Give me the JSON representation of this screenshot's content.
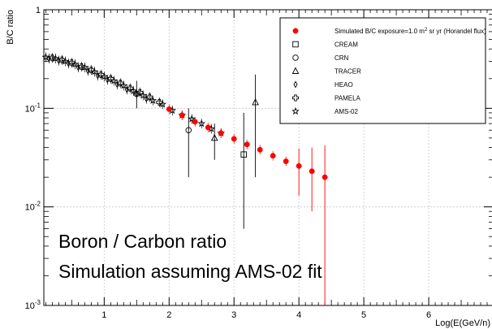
{
  "chart_data": {
    "type": "scatter",
    "xlabel": "Log(E(GeV/n)",
    "ylabel": "B/C ratio",
    "xlim": [
      0.07,
      7.0
    ],
    "ylim": [
      0.001,
      1
    ],
    "yscale": "log",
    "grid": true,
    "legend_position": "top-right",
    "x_ticks": [
      1,
      2,
      3,
      4,
      5,
      6
    ],
    "y_ticks": [
      {
        "value": 1,
        "label": "1"
      },
      {
        "value": 0.1,
        "label": "10^-1",
        "base": "10",
        "exp": "-1"
      },
      {
        "value": 0.01,
        "label": "10^-2",
        "base": "10",
        "exp": "-2"
      },
      {
        "value": 0.001,
        "label": "10^-3",
        "base": "10",
        "exp": "-3"
      }
    ],
    "annotations": [
      "Boron / Carbon ratio",
      "Simulation assuming  AMS-02 fit"
    ],
    "series": [
      {
        "name": "Simulated B/C exposure=1.0 m² sr yr (Horandel flux)",
        "legend_main": "Simulated B/C exposure=1.0 m",
        "legend_sup": "2",
        "legend_tail": " sr yr (Horandel flux)",
        "marker": "filled-circle",
        "color": "#ff0000",
        "points": [
          {
            "x": 2.0,
            "y": 0.098
          },
          {
            "x": 2.2,
            "y": 0.085
          },
          {
            "x": 2.4,
            "y": 0.073
          },
          {
            "x": 2.6,
            "y": 0.064
          },
          {
            "x": 2.8,
            "y": 0.056
          },
          {
            "x": 3.0,
            "y": 0.049
          },
          {
            "x": 3.2,
            "y": 0.043
          },
          {
            "x": 3.4,
            "y": 0.038
          },
          {
            "x": 3.6,
            "y": 0.033
          },
          {
            "x": 3.8,
            "y": 0.029
          },
          {
            "x": 4.0,
            "y": 0.026,
            "lo": 0.013,
            "hi": 0.039
          },
          {
            "x": 4.2,
            "y": 0.023,
            "lo": 0.009,
            "hi": 0.04
          },
          {
            "x": 4.4,
            "y": 0.02,
            "lo": 0.0008,
            "hi": 0.042
          }
        ]
      },
      {
        "name": "CREAM",
        "marker": "open-square",
        "color": "#000000",
        "points": [
          {
            "x": 3.15,
            "y": 0.034,
            "lo": 0.006,
            "hi": 0.09
          }
        ]
      },
      {
        "name": "CRN",
        "marker": "open-circle",
        "color": "#000000",
        "points": [
          {
            "x": 1.5,
            "y": 0.14,
            "lo": 0.1,
            "hi": 0.19
          },
          {
            "x": 2.3,
            "y": 0.06,
            "lo": 0.02,
            "hi": 0.1
          }
        ]
      },
      {
        "name": "TRACER",
        "marker": "open-triangle",
        "color": "#000000",
        "points": [
          {
            "x": 3.33,
            "y": 0.115,
            "lo": 0.02,
            "hi": 0.22
          },
          {
            "x": 2.7,
            "y": 0.05,
            "lo": 0.03,
            "hi": 0.07
          }
        ]
      },
      {
        "name": "HEAO",
        "marker": "open-diamond",
        "color": "#000000",
        "points": [
          {
            "x": 0.15,
            "y": 0.32
          },
          {
            "x": 0.3,
            "y": 0.305
          },
          {
            "x": 0.45,
            "y": 0.285
          },
          {
            "x": 0.6,
            "y": 0.26
          },
          {
            "x": 0.75,
            "y": 0.24
          },
          {
            "x": 0.9,
            "y": 0.215
          },
          {
            "x": 1.05,
            "y": 0.195
          },
          {
            "x": 1.2,
            "y": 0.175
          },
          {
            "x": 1.35,
            "y": 0.155
          },
          {
            "x": 1.5,
            "y": 0.14
          },
          {
            "x": 1.65,
            "y": 0.125
          }
        ]
      },
      {
        "name": "PAMELA",
        "marker": "open-cross",
        "color": "#000000",
        "points": [
          {
            "x": 0.2,
            "y": 0.325
          },
          {
            "x": 0.35,
            "y": 0.31
          },
          {
            "x": 0.5,
            "y": 0.29
          },
          {
            "x": 0.65,
            "y": 0.265
          },
          {
            "x": 0.8,
            "y": 0.245
          },
          {
            "x": 0.95,
            "y": 0.22
          },
          {
            "x": 1.1,
            "y": 0.2
          },
          {
            "x": 1.25,
            "y": 0.18
          },
          {
            "x": 1.4,
            "y": 0.16
          },
          {
            "x": 1.55,
            "y": 0.145
          },
          {
            "x": 1.7,
            "y": 0.13
          },
          {
            "x": 1.85,
            "y": 0.115
          }
        ]
      },
      {
        "name": "AMS-02",
        "marker": "open-star",
        "color": "#000000",
        "points": [
          {
            "x": 0.1,
            "y": 0.33
          },
          {
            "x": 0.25,
            "y": 0.32
          },
          {
            "x": 0.4,
            "y": 0.3
          },
          {
            "x": 0.55,
            "y": 0.28
          },
          {
            "x": 0.7,
            "y": 0.26
          },
          {
            "x": 0.85,
            "y": 0.235
          },
          {
            "x": 1.0,
            "y": 0.21
          },
          {
            "x": 1.15,
            "y": 0.19
          },
          {
            "x": 1.3,
            "y": 0.17
          },
          {
            "x": 1.45,
            "y": 0.15
          },
          {
            "x": 1.6,
            "y": 0.135
          },
          {
            "x": 1.75,
            "y": 0.12
          },
          {
            "x": 1.9,
            "y": 0.11
          },
          {
            "x": 2.05,
            "y": 0.095
          },
          {
            "x": 2.2,
            "y": 0.085
          },
          {
            "x": 2.35,
            "y": 0.078
          },
          {
            "x": 2.5,
            "y": 0.07
          },
          {
            "x": 2.65,
            "y": 0.062
          },
          {
            "x": 2.8,
            "y": 0.056
          }
        ]
      }
    ]
  }
}
